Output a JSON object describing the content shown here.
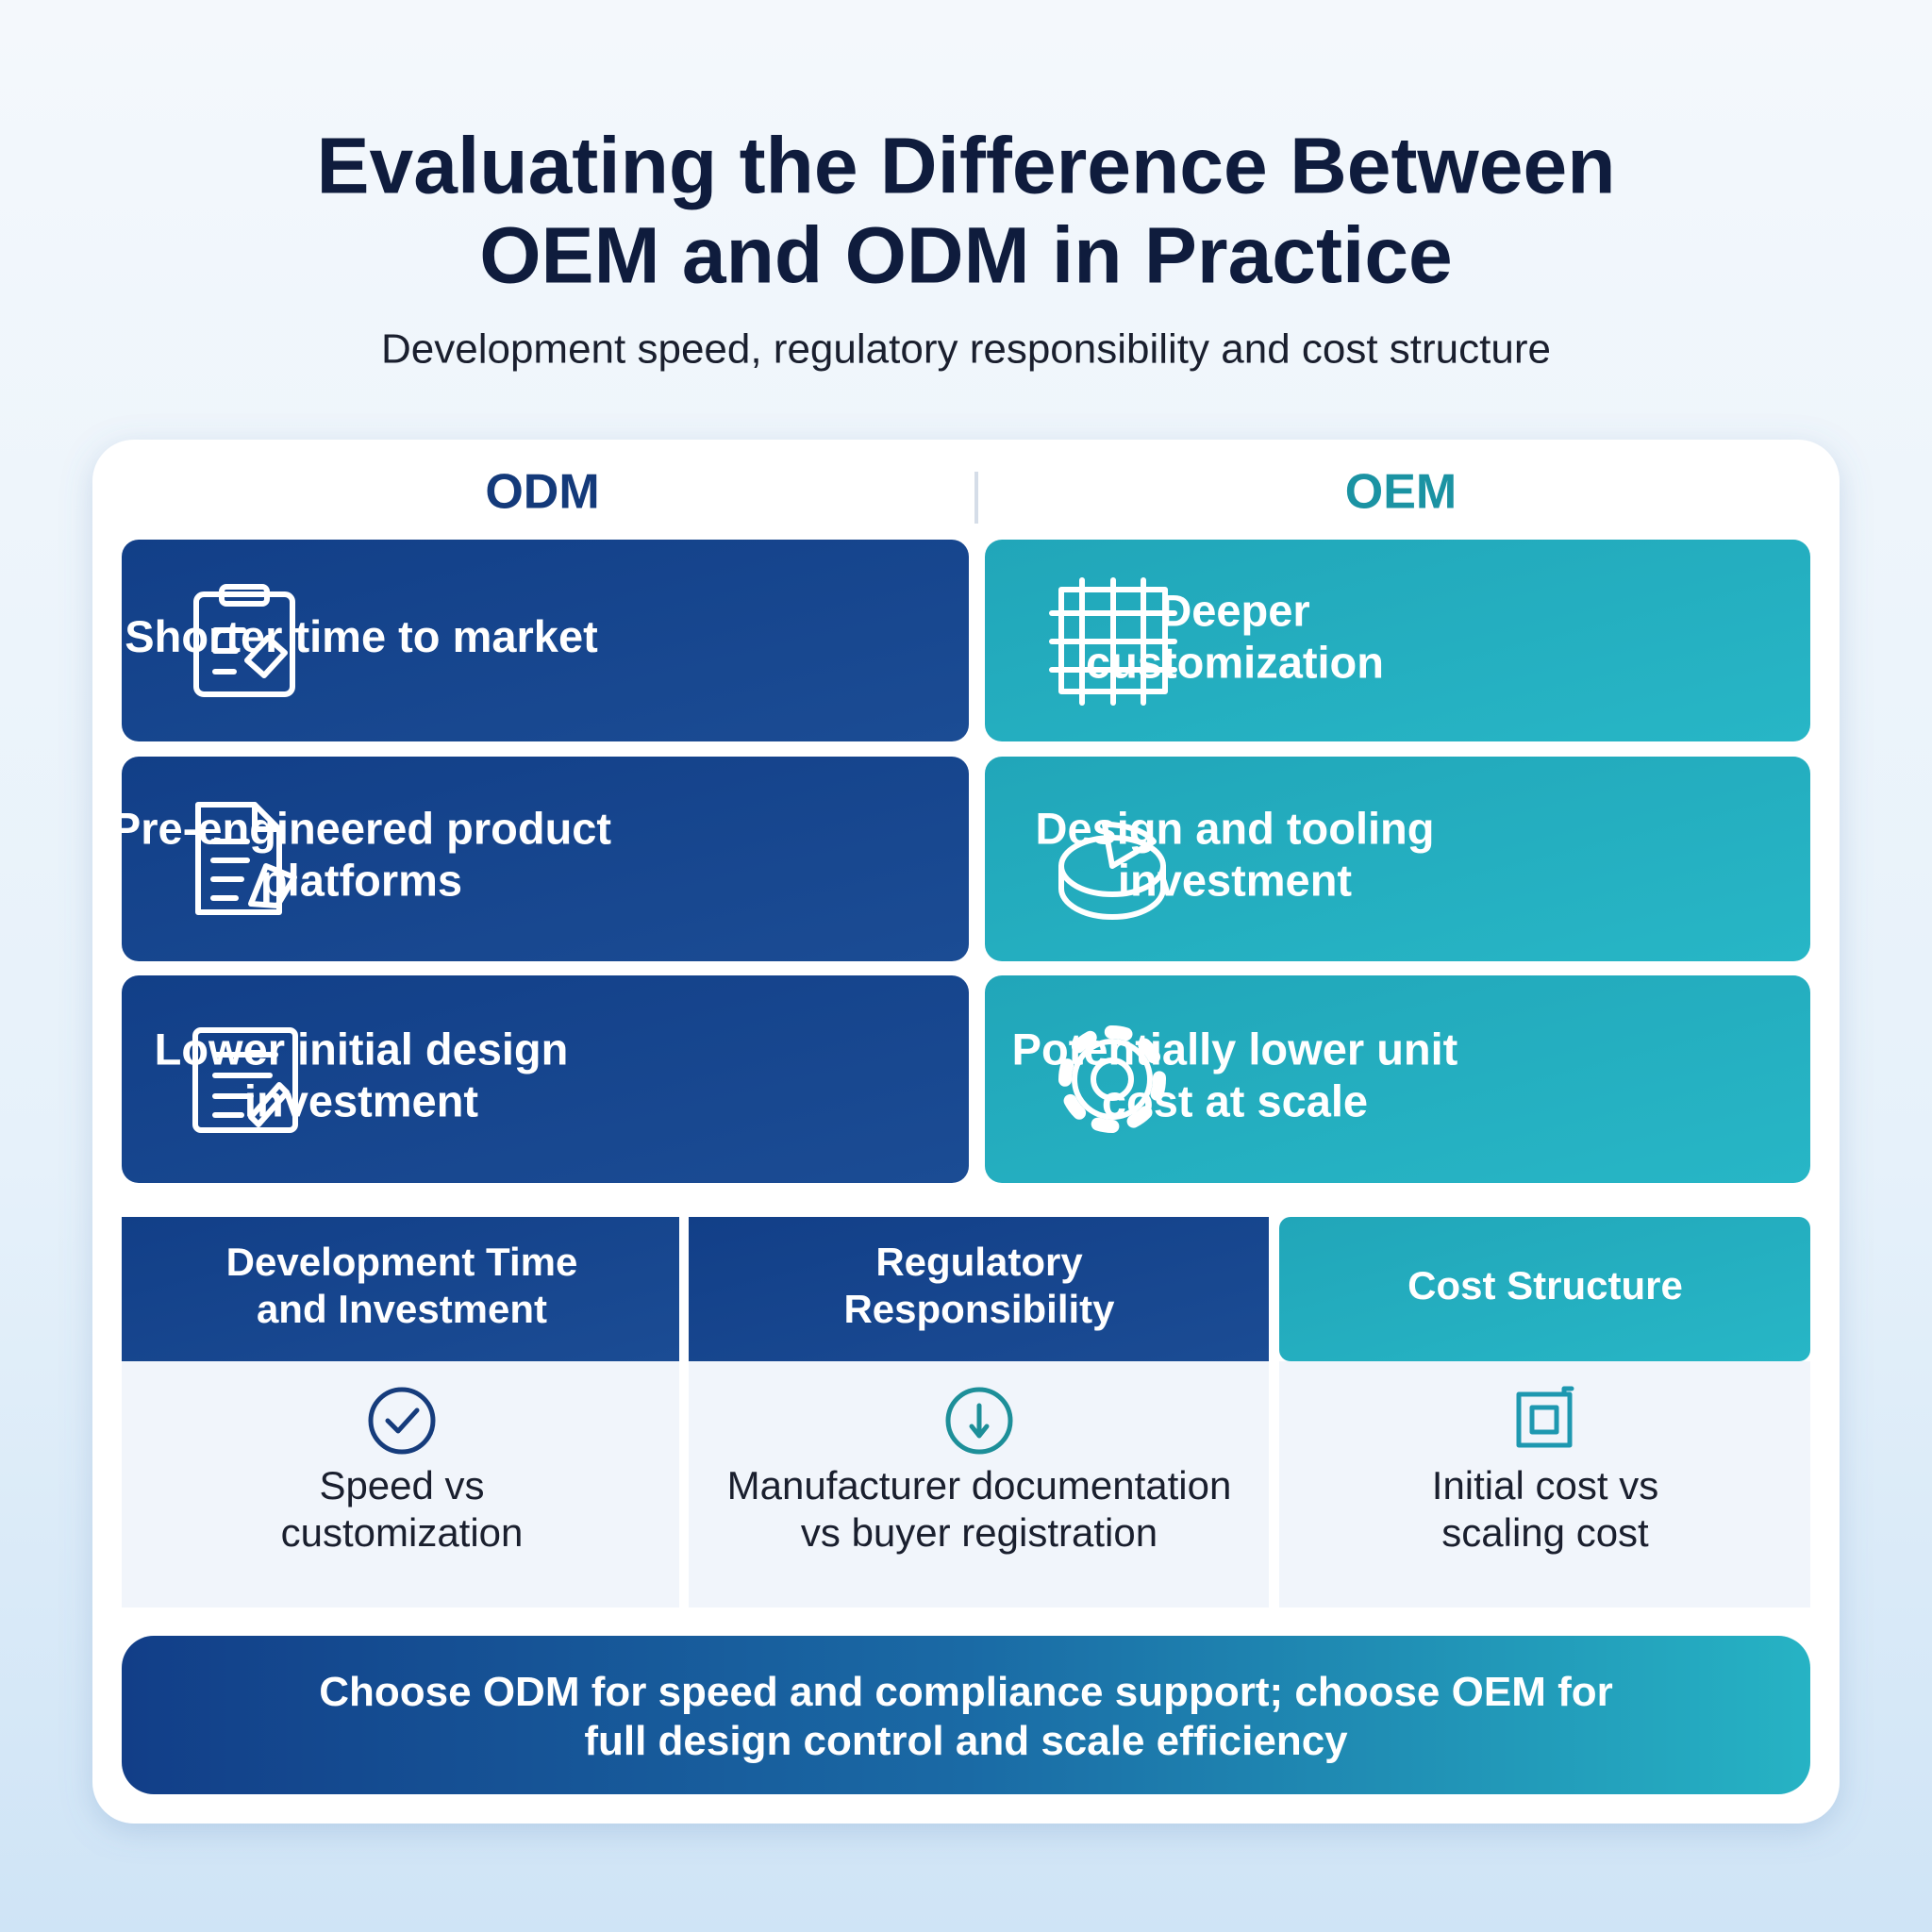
{
  "header": {
    "title": [
      "Evaluating the Difference Between",
      "OEM and ODM in Practice"
    ],
    "subtitle": "Development speed, regulatory responsibility and cost structure"
  },
  "columns": [
    {
      "heading": "ODM",
      "items": [
        [
          "Shorter time to market"
        ],
        [
          "Pre-engineered product",
          "platforms"
        ],
        [
          "Lower initial design",
          "investment"
        ]
      ]
    },
    {
      "heading": "OEM",
      "items": [
        [
          "Deeper",
          "customization"
        ],
        [
          "Design and tooling",
          "investment"
        ],
        [
          "Potentially lower unit",
          "cost at scale"
        ]
      ]
    }
  ],
  "factors": [
    {
      "heading": [
        "Development Time",
        "and Investment"
      ],
      "detail": [
        "Speed vs",
        "customization"
      ]
    },
    {
      "heading": [
        "Regulatory",
        "Responsibility"
      ],
      "detail": [
        "Manufacturer documentation",
        "vs buyer registration"
      ]
    },
    {
      "heading": [
        "Cost Structure"
      ],
      "detail": [
        "Initial cost vs",
        "scaling cost"
      ]
    }
  ],
  "conclusion": [
    "Choose ODM for speed and compliance support; choose OEM for",
    "full design control and scale efficiency"
  ]
}
